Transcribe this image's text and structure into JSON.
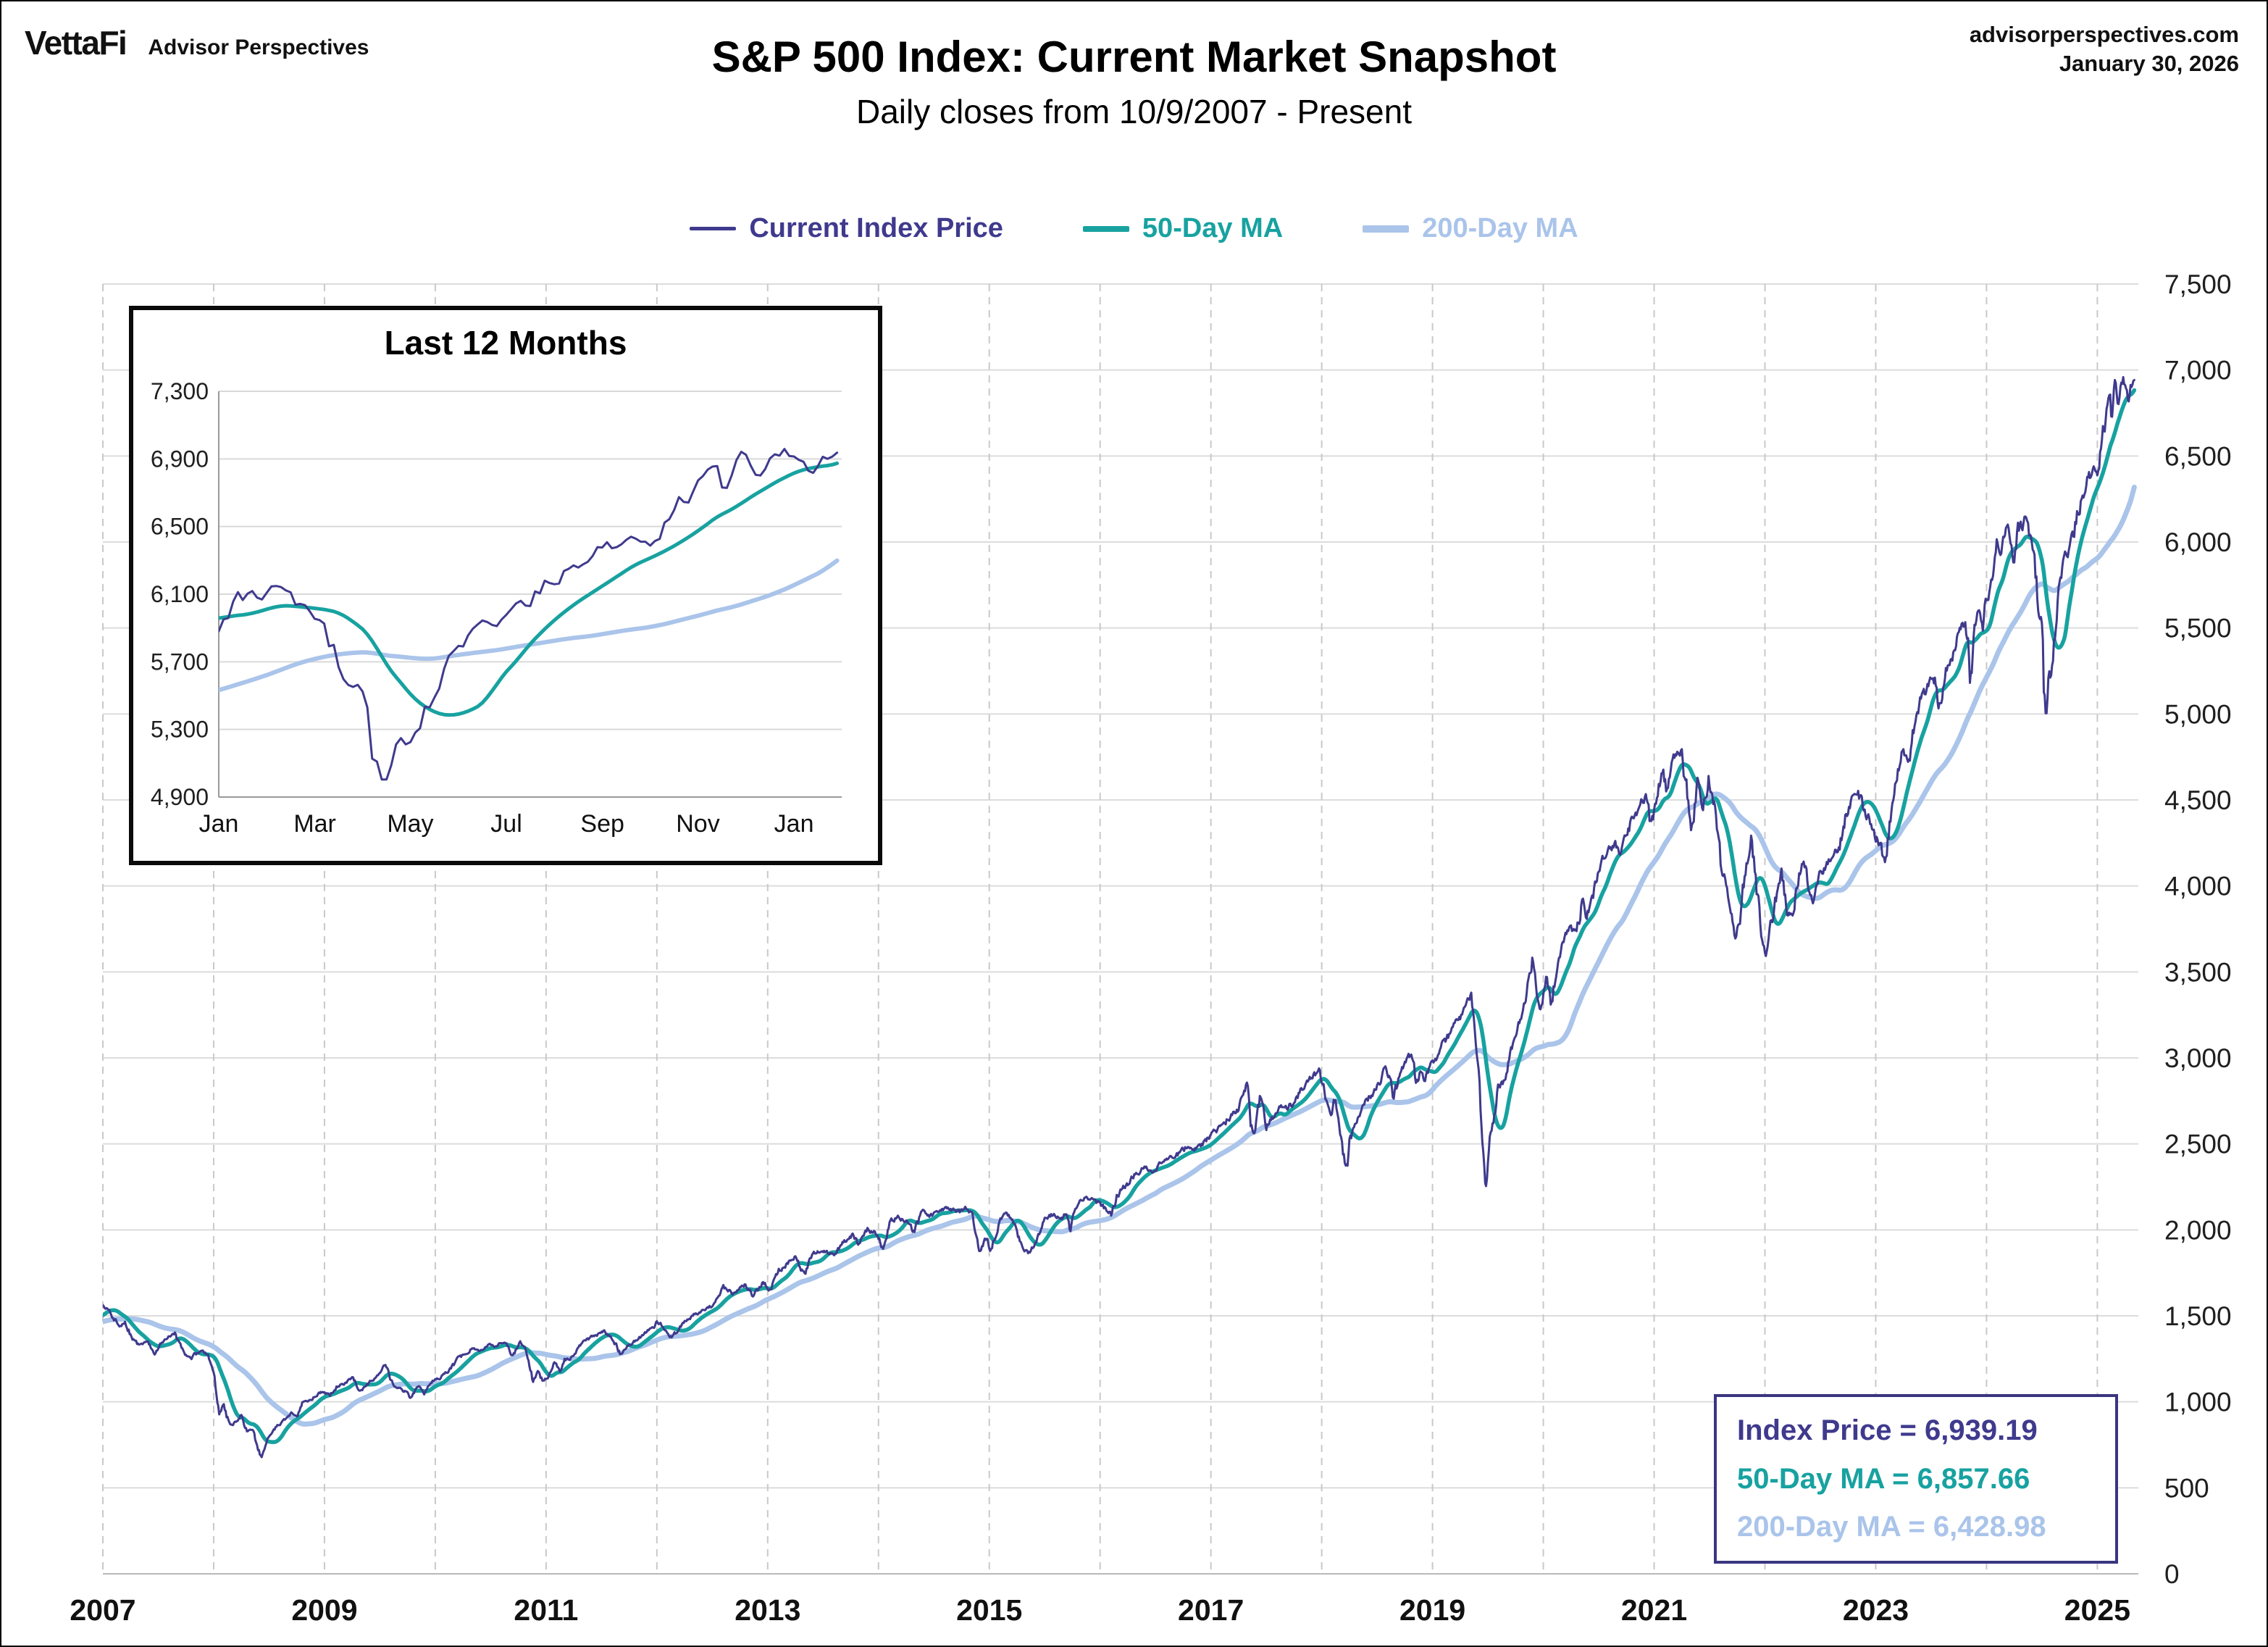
{
  "header": {
    "logo_primary": "VettaFi",
    "logo_secondary": "Advisor Perspectives",
    "site": "advisorperspectives.com",
    "date": "January 30, 2026",
    "title": "S&P 500 Index: Current Market Snapshot",
    "subtitle": "Daily closes from 10/9/2007 - Present"
  },
  "legend": [
    {
      "label": "Current Index Price",
      "color": "#3f3a8d"
    },
    {
      "label": "50-Day MA",
      "color": "#17a2a0"
    },
    {
      "label": "200-Day MA",
      "color": "#aac4ea"
    }
  ],
  "info_box": {
    "border_color": "#3a3580",
    "lines": [
      {
        "text": "Index Price = 6,939.19",
        "color": "#3f3a8d"
      },
      {
        "text": "50-Day MA = 6,857.66",
        "color": "#17a2a0"
      },
      {
        "text": "200-Day MA = 6,428.98",
        "color": "#aac4ea"
      }
    ]
  },
  "chart_data": {
    "type": "line",
    "title": "S&P 500 Index: Current Market Snapshot",
    "subtitle": "Daily closes from 10/9/2007 - Present",
    "x_unit": "decimal_year",
    "current_values": {
      "index_price": 6939.19,
      "ma_50": 6857.66,
      "ma_200": 6428.98
    },
    "draw_from": 2007.75,
    "main_axes": {
      "x_domain": [
        2007.75,
        2026.12
      ],
      "ylim": [
        0,
        7500
      ],
      "y_tick_step": 500,
      "y_axis_side": "right",
      "x_tick_interval_years": 2,
      "x_tick_labels": [
        "2007",
        "2009",
        "2011",
        "2013",
        "2015",
        "2017",
        "2019",
        "2021",
        "2023",
        "2025"
      ],
      "vertical_gridline_interval_years": 1,
      "grid": true
    },
    "inset": {
      "title": "Last 12 Months",
      "x_domain": [
        2025.0,
        2026.083
      ],
      "ylim": [
        4900,
        7300
      ],
      "y_tick_step": 400,
      "x_tick_positions": [
        2025.0,
        2025.167,
        2025.333,
        2025.5,
        2025.667,
        2025.833,
        2026.0
      ],
      "x_tick_labels": [
        "Jan",
        "Mar",
        "May",
        "Jul",
        "Sep",
        "Nov",
        "Jan"
      ]
    },
    "series": [
      {
        "name": "Current Index Price",
        "color": "#3f3a8d",
        "role": "price",
        "width_main": 3,
        "width_inset": 3
      },
      {
        "name": "50-Day MA",
        "color": "#17a2a0",
        "role": "ma",
        "window_trading_days": 50,
        "width_main": 5.5,
        "width_inset": 5
      },
      {
        "name": "200-Day MA",
        "color": "#aac4ea",
        "role": "ma",
        "window_trading_days": 200,
        "width_main": 7,
        "width_inset": 6
      }
    ],
    "keypoints": [
      [
        2006.75,
        1340
      ],
      [
        2006.85,
        1380
      ],
      [
        2006.95,
        1415
      ],
      [
        2007.05,
        1430
      ],
      [
        2007.15,
        1450
      ],
      [
        2007.2,
        1390
      ],
      [
        2007.3,
        1440
      ],
      [
        2007.4,
        1490
      ],
      [
        2007.5,
        1530
      ],
      [
        2007.58,
        1455
      ],
      [
        2007.65,
        1490
      ],
      [
        2007.7,
        1540
      ],
      [
        2007.75,
        1562
      ],
      [
        2007.8,
        1540
      ],
      [
        2007.85,
        1490
      ],
      [
        2007.9,
        1440
      ],
      [
        2007.95,
        1478
      ],
      [
        2008.0,
        1380
      ],
      [
        2008.07,
        1330
      ],
      [
        2008.15,
        1350
      ],
      [
        2008.22,
        1280
      ],
      [
        2008.3,
        1370
      ],
      [
        2008.4,
        1400
      ],
      [
        2008.48,
        1280
      ],
      [
        2008.55,
        1250
      ],
      [
        2008.62,
        1300
      ],
      [
        2008.7,
        1270
      ],
      [
        2008.75,
        1160
      ],
      [
        2008.8,
        940
      ],
      [
        2008.84,
        980
      ],
      [
        2008.9,
        850
      ],
      [
        2008.96,
        890
      ],
      [
        2009.0,
        930
      ],
      [
        2009.05,
        830
      ],
      [
        2009.1,
        835
      ],
      [
        2009.18,
        677
      ],
      [
        2009.25,
        800
      ],
      [
        2009.32,
        860
      ],
      [
        2009.4,
        900
      ],
      [
        2009.45,
        930
      ],
      [
        2009.5,
        920
      ],
      [
        2009.55,
        990
      ],
      [
        2009.62,
        1010
      ],
      [
        2009.7,
        1050
      ],
      [
        2009.75,
        1060
      ],
      [
        2009.8,
        1035
      ],
      [
        2009.87,
        1095
      ],
      [
        2009.95,
        1110
      ],
      [
        2010.0,
        1140
      ],
      [
        2010.08,
        1060
      ],
      [
        2010.15,
        1110
      ],
      [
        2010.25,
        1180
      ],
      [
        2010.3,
        1210
      ],
      [
        2010.37,
        1095
      ],
      [
        2010.45,
        1080
      ],
      [
        2010.52,
        1025
      ],
      [
        2010.6,
        1100
      ],
      [
        2010.65,
        1050
      ],
      [
        2010.72,
        1125
      ],
      [
        2010.8,
        1145
      ],
      [
        2010.88,
        1185
      ],
      [
        2010.95,
        1245
      ],
      [
        2011.0,
        1270
      ],
      [
        2011.08,
        1310
      ],
      [
        2011.15,
        1300
      ],
      [
        2011.22,
        1330
      ],
      [
        2011.3,
        1320
      ],
      [
        2011.37,
        1355
      ],
      [
        2011.45,
        1270
      ],
      [
        2011.52,
        1340
      ],
      [
        2011.57,
        1290
      ],
      [
        2011.6,
        1200
      ],
      [
        2011.63,
        1120
      ],
      [
        2011.68,
        1180
      ],
      [
        2011.72,
        1120
      ],
      [
        2011.78,
        1160
      ],
      [
        2011.82,
        1230
      ],
      [
        2011.88,
        1180
      ],
      [
        2011.92,
        1240
      ],
      [
        2011.97,
        1255
      ],
      [
        2012.0,
        1280
      ],
      [
        2012.1,
        1350
      ],
      [
        2012.2,
        1390
      ],
      [
        2012.27,
        1410
      ],
      [
        2012.35,
        1370
      ],
      [
        2012.42,
        1280
      ],
      [
        2012.5,
        1330
      ],
      [
        2012.57,
        1360
      ],
      [
        2012.65,
        1400
      ],
      [
        2012.72,
        1440
      ],
      [
        2012.75,
        1465
      ],
      [
        2012.82,
        1430
      ],
      [
        2012.88,
        1380
      ],
      [
        2012.95,
        1420
      ],
      [
        2013.0,
        1460
      ],
      [
        2013.08,
        1510
      ],
      [
        2013.15,
        1520
      ],
      [
        2013.25,
        1560
      ],
      [
        2013.35,
        1660
      ],
      [
        2013.45,
        1630
      ],
      [
        2013.55,
        1690
      ],
      [
        2013.62,
        1610
      ],
      [
        2013.7,
        1700
      ],
      [
        2013.77,
        1655
      ],
      [
        2013.85,
        1760
      ],
      [
        2013.92,
        1800
      ],
      [
        2013.98,
        1840
      ],
      [
        2014.0,
        1845
      ],
      [
        2014.08,
        1740
      ],
      [
        2014.15,
        1860
      ],
      [
        2014.25,
        1880
      ],
      [
        2014.35,
        1860
      ],
      [
        2014.45,
        1940
      ],
      [
        2014.52,
        1975
      ],
      [
        2014.57,
        1910
      ],
      [
        2014.65,
        2000
      ],
      [
        2014.72,
        1985
      ],
      [
        2014.76,
        1930
      ],
      [
        2014.79,
        1875
      ],
      [
        2014.85,
        2040
      ],
      [
        2014.92,
        2075
      ],
      [
        2014.97,
        2060
      ],
      [
        2015.0,
        2055
      ],
      [
        2015.07,
        1990
      ],
      [
        2015.15,
        2110
      ],
      [
        2015.22,
        2080
      ],
      [
        2015.3,
        2105
      ],
      [
        2015.4,
        2125
      ],
      [
        2015.48,
        2100
      ],
      [
        2015.55,
        2125
      ],
      [
        2015.6,
        2080
      ],
      [
        2015.63,
        1990
      ],
      [
        2015.66,
        1870
      ],
      [
        2015.72,
        1950
      ],
      [
        2015.76,
        1880
      ],
      [
        2015.82,
        2000
      ],
      [
        2015.88,
        2100
      ],
      [
        2015.93,
        2080
      ],
      [
        2015.97,
        2045
      ],
      [
        2016.0,
        2010
      ],
      [
        2016.05,
        1880
      ],
      [
        2016.1,
        1865
      ],
      [
        2016.17,
        1940
      ],
      [
        2016.25,
        2050
      ],
      [
        2016.32,
        2090
      ],
      [
        2016.4,
        2065
      ],
      [
        2016.45,
        2100
      ],
      [
        2016.48,
        2000
      ],
      [
        2016.55,
        2170
      ],
      [
        2016.62,
        2185
      ],
      [
        2016.7,
        2170
      ],
      [
        2016.78,
        2130
      ],
      [
        2016.85,
        2085
      ],
      [
        2016.9,
        2200
      ],
      [
        2016.96,
        2250
      ],
      [
        2017.0,
        2260
      ],
      [
        2017.08,
        2330
      ],
      [
        2017.15,
        2365
      ],
      [
        2017.22,
        2340
      ],
      [
        2017.3,
        2390
      ],
      [
        2017.38,
        2420
      ],
      [
        2017.45,
        2440
      ],
      [
        2017.52,
        2475
      ],
      [
        2017.6,
        2460
      ],
      [
        2017.68,
        2500
      ],
      [
        2017.75,
        2560
      ],
      [
        2017.85,
        2600
      ],
      [
        2017.92,
        2660
      ],
      [
        2017.97,
        2690
      ],
      [
        2018.0,
        2700
      ],
      [
        2018.04,
        2790
      ],
      [
        2018.08,
        2870
      ],
      [
        2018.11,
        2650
      ],
      [
        2018.14,
        2580
      ],
      [
        2018.2,
        2780
      ],
      [
        2018.25,
        2590
      ],
      [
        2018.3,
        2650
      ],
      [
        2018.37,
        2720
      ],
      [
        2018.45,
        2710
      ],
      [
        2018.52,
        2760
      ],
      [
        2018.6,
        2850
      ],
      [
        2018.68,
        2900
      ],
      [
        2018.73,
        2930
      ],
      [
        2018.78,
        2780
      ],
      [
        2018.82,
        2650
      ],
      [
        2018.87,
        2760
      ],
      [
        2018.91,
        2630
      ],
      [
        2018.95,
        2420
      ],
      [
        2018.98,
        2350
      ],
      [
        2019.0,
        2480
      ],
      [
        2019.06,
        2620
      ],
      [
        2019.12,
        2720
      ],
      [
        2019.2,
        2790
      ],
      [
        2019.27,
        2850
      ],
      [
        2019.33,
        2945
      ],
      [
        2019.4,
        2760
      ],
      [
        2019.46,
        2920
      ],
      [
        2019.52,
        2990
      ],
      [
        2019.56,
        3020
      ],
      [
        2019.6,
        2860
      ],
      [
        2019.64,
        2920
      ],
      [
        2019.67,
        2850
      ],
      [
        2019.72,
        2960
      ],
      [
        2019.78,
        2990
      ],
      [
        2019.85,
        3080
      ],
      [
        2019.92,
        3150
      ],
      [
        2019.97,
        3230
      ],
      [
        2020.0,
        3240
      ],
      [
        2020.05,
        3320
      ],
      [
        2020.1,
        3386
      ],
      [
        2020.14,
        3100
      ],
      [
        2020.18,
        2750
      ],
      [
        2020.21,
        2400
      ],
      [
        2020.23,
        2237
      ],
      [
        2020.27,
        2550
      ],
      [
        2020.3,
        2640
      ],
      [
        2020.34,
        2800
      ],
      [
        2020.4,
        2880
      ],
      [
        2020.45,
        3050
      ],
      [
        2020.5,
        3120
      ],
      [
        2020.55,
        3235
      ],
      [
        2020.6,
        3390
      ],
      [
        2020.65,
        3580
      ],
      [
        2020.69,
        3340
      ],
      [
        2020.73,
        3290
      ],
      [
        2020.78,
        3450
      ],
      [
        2020.82,
        3290
      ],
      [
        2020.87,
        3540
      ],
      [
        2020.92,
        3640
      ],
      [
        2020.97,
        3720
      ],
      [
        2021.0,
        3760
      ],
      [
        2021.05,
        3715
      ],
      [
        2021.1,
        3910
      ],
      [
        2021.14,
        3830
      ],
      [
        2021.2,
        3940
      ],
      [
        2021.27,
        4130
      ],
      [
        2021.33,
        4200
      ],
      [
        2021.4,
        4230
      ],
      [
        2021.45,
        4170
      ],
      [
        2021.5,
        4300
      ],
      [
        2021.56,
        4410
      ],
      [
        2021.62,
        4440
      ],
      [
        2021.68,
        4535
      ],
      [
        2021.72,
        4330
      ],
      [
        2021.77,
        4460
      ],
      [
        2021.82,
        4700
      ],
      [
        2021.86,
        4570
      ],
      [
        2021.9,
        4690
      ],
      [
        2021.96,
        4790
      ],
      [
        2022.0,
        4795
      ],
      [
        2022.05,
        4520
      ],
      [
        2022.09,
        4350
      ],
      [
        2022.14,
        4590
      ],
      [
        2022.19,
        4380
      ],
      [
        2022.24,
        4630
      ],
      [
        2022.3,
        4450
      ],
      [
        2022.35,
        4120
      ],
      [
        2022.4,
        4010
      ],
      [
        2022.44,
        3900
      ],
      [
        2022.47,
        3670
      ],
      [
        2022.52,
        3790
      ],
      [
        2022.58,
        4140
      ],
      [
        2022.63,
        4300
      ],
      [
        2022.68,
        3960
      ],
      [
        2022.73,
        3650
      ],
      [
        2022.76,
        3585
      ],
      [
        2022.81,
        3770
      ],
      [
        2022.86,
        3970
      ],
      [
        2022.9,
        4080
      ],
      [
        2022.95,
        3860
      ],
      [
        2023.0,
        3840
      ],
      [
        2023.06,
        4080
      ],
      [
        2023.1,
        4150
      ],
      [
        2023.14,
        3970
      ],
      [
        2023.19,
        3920
      ],
      [
        2023.25,
        4050
      ],
      [
        2023.3,
        4100
      ],
      [
        2023.35,
        4180
      ],
      [
        2023.42,
        4220
      ],
      [
        2023.48,
        4410
      ],
      [
        2023.53,
        4500
      ],
      [
        2023.58,
        4580
      ],
      [
        2023.64,
        4450
      ],
      [
        2023.7,
        4380
      ],
      [
        2023.75,
        4290
      ],
      [
        2023.8,
        4230
      ],
      [
        2023.83,
        4120
      ],
      [
        2023.88,
        4380
      ],
      [
        2023.93,
        4560
      ],
      [
        2023.98,
        4740
      ],
      [
        2024.0,
        4770
      ],
      [
        2024.04,
        4690
      ],
      [
        2024.1,
        4960
      ],
      [
        2024.16,
        5080
      ],
      [
        2024.22,
        5150
      ],
      [
        2024.26,
        5250
      ],
      [
        2024.3,
        5160
      ],
      [
        2024.33,
        5020
      ],
      [
        2024.38,
        5250
      ],
      [
        2024.43,
        5310
      ],
      [
        2024.47,
        5430
      ],
      [
        2024.52,
        5480
      ],
      [
        2024.56,
        5570
      ],
      [
        2024.59,
        5350
      ],
      [
        2024.6,
        5190
      ],
      [
        2024.64,
        5450
      ],
      [
        2024.68,
        5620
      ],
      [
        2024.72,
        5520
      ],
      [
        2024.76,
        5700
      ],
      [
        2024.8,
        5780
      ],
      [
        2024.84,
        5990
      ],
      [
        2024.88,
        5890
      ],
      [
        2024.93,
        6080
      ],
      [
        2024.97,
        5970
      ],
      [
        2025.0,
        5890
      ],
      [
        2025.03,
        6040
      ],
      [
        2025.07,
        6090
      ],
      [
        2025.1,
        6130
      ],
      [
        2025.14,
        5990
      ],
      [
        2025.18,
        5860
      ],
      [
        2025.22,
        5620
      ],
      [
        2025.25,
        5520
      ],
      [
        2025.27,
        5060
      ],
      [
        2025.29,
        4982
      ],
      [
        2025.31,
        5280
      ],
      [
        2025.33,
        5200
      ],
      [
        2025.36,
        5460
      ],
      [
        2025.4,
        5680
      ],
      [
        2025.44,
        5840
      ],
      [
        2025.48,
        5940
      ],
      [
        2025.52,
        6020
      ],
      [
        2025.56,
        6150
      ],
      [
        2025.6,
        6230
      ],
      [
        2025.64,
        6280
      ],
      [
        2025.68,
        6380
      ],
      [
        2025.71,
        6450
      ],
      [
        2025.74,
        6390
      ],
      [
        2025.77,
        6500
      ],
      [
        2025.8,
        6630
      ],
      [
        2025.83,
        6720
      ],
      [
        2025.86,
        6850
      ],
      [
        2025.88,
        6710
      ],
      [
        2025.9,
        6830
      ],
      [
        2025.92,
        6900
      ],
      [
        2025.94,
        6790
      ],
      [
        2025.96,
        6870
      ],
      [
        2026.0,
        6940
      ],
      [
        2026.03,
        6860
      ],
      [
        2026.06,
        6930
      ],
      [
        2026.08,
        6939
      ]
    ]
  }
}
